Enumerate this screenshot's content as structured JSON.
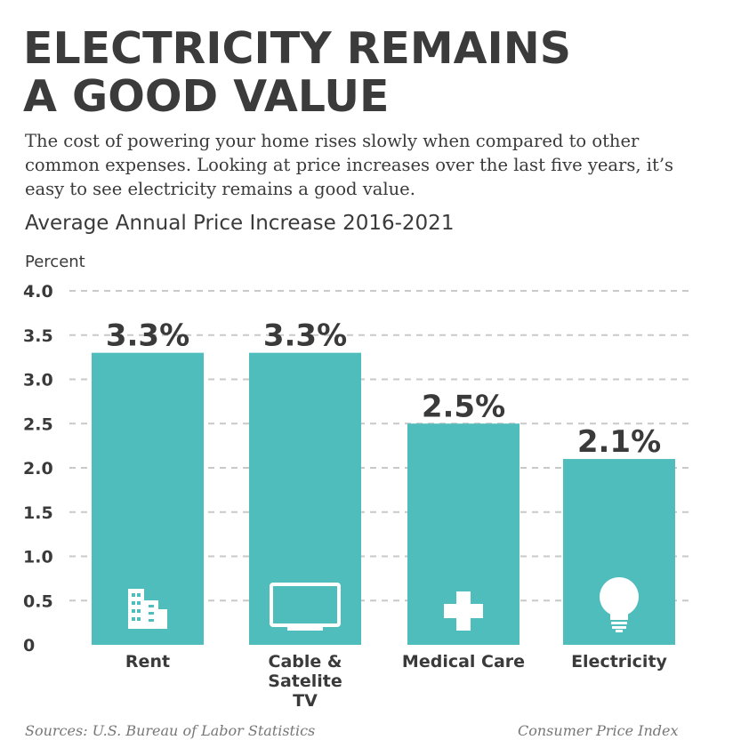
{
  "headline": {
    "line1": "ELECTRICITY REMAINS",
    "line2": "A GOOD VALUE"
  },
  "intro_lines": [
    "The cost of powering your home rises slowly when compared to other",
    "common expenses. Looking at price increases over the last five years, it’s",
    "easy to see electricity remains a good value."
  ],
  "footer": {
    "sources": "Sources: U.S. Bureau of Labor Statistics",
    "index_name": "Consumer Price Index"
  },
  "colors": {
    "bar": "#4fbdbc",
    "text": "#3a3a3a",
    "grid": "#c9c9c9",
    "icon": "#ffffff"
  },
  "chart_data": {
    "type": "bar",
    "title": "Average Annual Price Increase 2016-2021",
    "ylabel": "Percent",
    "xlabel": "",
    "ylim": [
      0,
      4.0
    ],
    "yticks": [
      "0",
      "0.5",
      "1.0",
      "1.5",
      "2.0",
      "2.5",
      "3.0",
      "3.5",
      "4.0"
    ],
    "grid": "dashed horizontal",
    "categories": [
      [
        "Rent"
      ],
      [
        "Cable &",
        "Satelite",
        "TV"
      ],
      [
        "Medical Care"
      ],
      [
        "Electricity"
      ]
    ],
    "values": [
      3.3,
      3.3,
      2.5,
      2.1
    ],
    "data_labels": [
      "3.3%",
      "3.3%",
      "2.5%",
      "2.1%"
    ],
    "icons": [
      "building-icon",
      "tv-icon",
      "medical-cross-icon",
      "lightbulb-icon"
    ]
  }
}
